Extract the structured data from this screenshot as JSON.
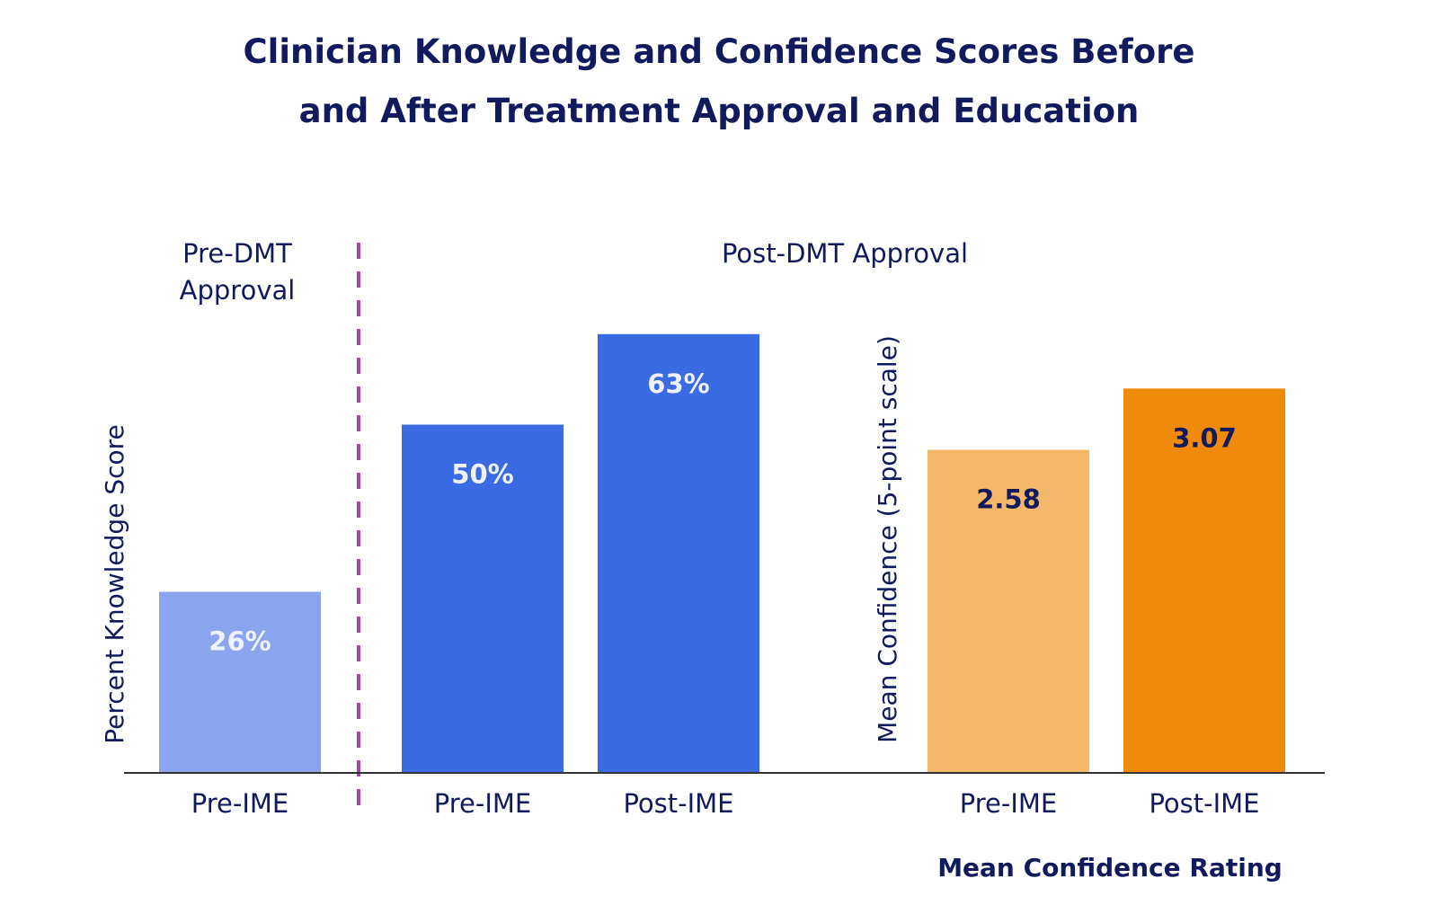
{
  "chart_data": {
    "type": "bar",
    "title_lines": [
      "Clinician Knowledge and Confidence Scores Before",
      "and After Treatment Approval and Education"
    ],
    "knowledge": {
      "ylabel": "Percent Knowledge Score",
      "ylim": [
        0,
        80
      ],
      "period_labels": {
        "pre": [
          "Pre-DMT",
          "Approval"
        ],
        "post": "Post-DMT Approval"
      },
      "categories": [
        "Pre-IME",
        "Pre-IME",
        "Post-IME"
      ],
      "values": [
        26,
        50,
        63
      ],
      "value_labels": [
        "26%",
        "50%",
        "63%"
      ],
      "colors": [
        "#8aa5ee",
        "#3a6be3",
        "#3a6be3"
      ],
      "label_color": "#eef2ff"
    },
    "confidence": {
      "ylabel": "Mean Confidence (5-point scale)",
      "xlabel": "Mean Confidence Rating",
      "ylim": [
        0,
        4.45
      ],
      "categories": [
        "Pre-IME",
        "Post-IME"
      ],
      "values": [
        2.58,
        3.07
      ],
      "value_labels": [
        "2.58",
        "3.07"
      ],
      "colors": [
        "#f5b86b",
        "#f08a0a"
      ],
      "label_color": "#101a5c"
    },
    "divider_color": "#a845a8",
    "axis_color": "#333333"
  }
}
